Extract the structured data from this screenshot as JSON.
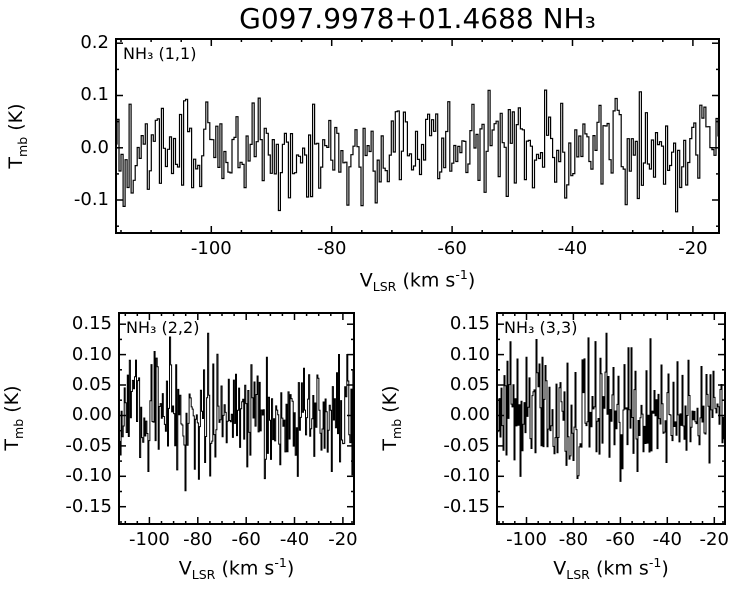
{
  "title": "G097.9978+01.4688 NH₃",
  "colors": {
    "foreground": "#000000",
    "background": "#ffffff"
  },
  "axes": {
    "xlabel": {
      "pre": "V",
      "sub": "LSR",
      "mid": " (km s",
      "sup": "-1",
      "end": ")"
    },
    "ylabel": {
      "pre": "T",
      "sub": "mb",
      "end": " (K)"
    }
  },
  "chart_data": [
    {
      "id": "nh3_1_1",
      "type": "line",
      "line_style": "histogram-step",
      "color": "#000000",
      "series_label": "NH₃ (1,1)",
      "xlabel": "V_LSR (km s⁻¹)",
      "ylabel": "T_mb (K)",
      "xlim": [
        -116,
        -15.5
      ],
      "ylim": [
        -0.165,
        0.21
      ],
      "xticks": [
        -100,
        -80,
        -60,
        -40,
        -20
      ],
      "xtick_labels": [
        "-100",
        "-80",
        "-60",
        "-40",
        "-20"
      ],
      "yticks": [
        0.2,
        0.1,
        0.0,
        -0.1
      ],
      "ytick_labels": [
        "0.2",
        "0.1",
        "0.0",
        "-0.1"
      ],
      "content": "baseline noise only; no detected NH3 (1,1) emission; excursions roughly -0.13 to +0.15 K",
      "noise": {
        "seed": 101,
        "n": 300,
        "rms": 0.05,
        "clip_min": -0.135,
        "clip_max": 0.155
      }
    },
    {
      "id": "nh3_2_2",
      "type": "line",
      "line_style": "histogram-step",
      "color": "#000000",
      "series_label": "NH₃ (2,2)",
      "xlabel": "V_LSR (km s⁻¹)",
      "ylabel": "T_mb (K)",
      "xlim": [
        -113,
        -15
      ],
      "ylim": [
        -0.18,
        0.17
      ],
      "xticks": [
        -100,
        -80,
        -60,
        -40,
        -20
      ],
      "xtick_labels": [
        "-100",
        "-80",
        "-60",
        "-40",
        "-20"
      ],
      "yticks": [
        0.15,
        0.1,
        0.05,
        0.0,
        -0.05,
        -0.1,
        -0.15
      ],
      "ytick_labels": [
        "0.15",
        "0.10",
        "0.05",
        "0.00",
        "-0.05",
        "-0.10",
        "-0.15"
      ],
      "content": "baseline noise only; no detected NH3 (2,2) emission; excursions roughly -0.13 to +0.13 K",
      "noise": {
        "seed": 202,
        "n": 230,
        "rms": 0.05,
        "clip_min": -0.14,
        "clip_max": 0.135
      }
    },
    {
      "id": "nh3_3_3",
      "type": "line",
      "line_style": "histogram-step",
      "color": "#000000",
      "series_label": "NH₃ (3,3)",
      "xlabel": "V_LSR (km s⁻¹)",
      "ylabel": "T_mb (K)",
      "xlim": [
        -113,
        -15
      ],
      "ylim": [
        -0.18,
        0.17
      ],
      "xticks": [
        -100,
        -80,
        -60,
        -40,
        -20
      ],
      "xtick_labels": [
        "-100",
        "-80",
        "-60",
        "-40",
        "-20"
      ],
      "yticks": [
        0.15,
        0.1,
        0.05,
        0.0,
        -0.05,
        -0.1,
        -0.15
      ],
      "ytick_labels": [
        "0.15",
        "0.10",
        "0.05",
        "0.00",
        "-0.05",
        "-0.10",
        "-0.15"
      ],
      "content": "baseline noise only; no detected NH3 (3,3) emission; excursions roughly -0.13 to +0.13 K",
      "noise": {
        "seed": 303,
        "n": 230,
        "rms": 0.05,
        "clip_min": -0.14,
        "clip_max": 0.135
      }
    }
  ]
}
